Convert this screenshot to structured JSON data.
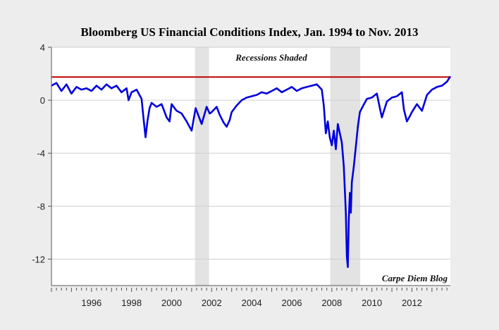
{
  "chart_data": {
    "type": "line",
    "title": "Bloomberg US Financial Conditions Index, Jan. 1994 to Nov. 2013",
    "xlabel": "",
    "ylabel": "",
    "xlim": [
      1994.0,
      2013.92
    ],
    "ylim": [
      -14,
      4
    ],
    "y_ticks": [
      4,
      0,
      -4,
      -8,
      -12
    ],
    "y_tick_labels": [
      "4",
      "0",
      "-4",
      "-8",
      "-12"
    ],
    "x_ticks": [
      1996,
      1998,
      2000,
      2002,
      2004,
      2006,
      2008,
      2010,
      2012
    ],
    "x_tick_labels": [
      "1996",
      "1998",
      "2000",
      "2002",
      "2004",
      "2006",
      "2008",
      "2010",
      "2012"
    ],
    "annotations": [
      "Recessions Shaded",
      "Carpe Diem Blog"
    ],
    "recessions": [
      {
        "start": 2001.17,
        "end": 2001.87
      },
      {
        "start": 2007.92,
        "end": 2009.42
      }
    ],
    "reference_line": {
      "y": 1.75,
      "color": "#c00000"
    },
    "series": [
      {
        "name": "Bloomberg US Financial Conditions Index",
        "color": "#0000dd",
        "x": [
          1994.0,
          1994.25,
          1994.5,
          1994.75,
          1995.0,
          1995.25,
          1995.5,
          1995.75,
          1996.0,
          1996.25,
          1996.5,
          1996.75,
          1997.0,
          1997.25,
          1997.5,
          1997.75,
          1997.85,
          1998.0,
          1998.25,
          1998.5,
          1998.6,
          1998.7,
          1998.8,
          1998.9,
          1999.0,
          1999.25,
          1999.5,
          1999.75,
          1999.9,
          2000.0,
          2000.25,
          2000.5,
          2000.75,
          2001.0,
          2001.2,
          2001.5,
          2001.75,
          2001.9,
          2002.0,
          2002.25,
          2002.4,
          2002.6,
          2002.75,
          2002.9,
          2003.0,
          2003.25,
          2003.5,
          2003.75,
          2004.0,
          2004.25,
          2004.5,
          2004.75,
          2005.0,
          2005.25,
          2005.5,
          2005.75,
          2006.0,
          2006.25,
          2006.5,
          2006.75,
          2007.0,
          2007.25,
          2007.5,
          2007.6,
          2007.7,
          2007.8,
          2007.9,
          2008.0,
          2008.1,
          2008.2,
          2008.3,
          2008.4,
          2008.5,
          2008.6,
          2008.7,
          2008.75,
          2008.8,
          2008.85,
          2008.9,
          2008.95,
          2009.0,
          2009.1,
          2009.2,
          2009.3,
          2009.4,
          2009.5,
          2009.75,
          2010.0,
          2010.25,
          2010.4,
          2010.5,
          2010.75,
          2011.0,
          2011.25,
          2011.5,
          2011.6,
          2011.75,
          2011.9,
          2012.0,
          2012.25,
          2012.5,
          2012.75,
          2013.0,
          2013.25,
          2013.5,
          2013.75,
          2013.92
        ],
        "values": [
          1.1,
          1.3,
          0.7,
          1.2,
          0.5,
          1.0,
          0.8,
          0.9,
          0.7,
          1.1,
          0.8,
          1.2,
          0.9,
          1.1,
          0.6,
          0.9,
          0.0,
          0.6,
          0.8,
          0.1,
          -1.4,
          -2.8,
          -1.5,
          -0.6,
          -0.2,
          -0.5,
          -0.3,
          -1.3,
          -1.6,
          -0.3,
          -0.8,
          -1.0,
          -1.6,
          -2.3,
          -0.6,
          -1.8,
          -0.5,
          -1.0,
          -0.9,
          -0.5,
          -1.1,
          -1.7,
          -2.0,
          -1.5,
          -0.9,
          -0.4,
          0.0,
          0.2,
          0.3,
          0.4,
          0.6,
          0.5,
          0.7,
          0.9,
          0.6,
          0.8,
          1.0,
          0.7,
          0.9,
          1.0,
          1.1,
          1.2,
          0.8,
          -0.4,
          -2.5,
          -1.6,
          -2.8,
          -3.4,
          -2.3,
          -3.7,
          -1.8,
          -2.5,
          -3.2,
          -5.0,
          -8.5,
          -11.8,
          -12.6,
          -9.0,
          -7.0,
          -8.5,
          -6.2,
          -5.0,
          -3.5,
          -2.0,
          -0.9,
          -0.6,
          0.1,
          0.2,
          0.5,
          -0.6,
          -1.3,
          -0.1,
          0.2,
          0.3,
          0.6,
          -0.7,
          -1.6,
          -1.2,
          -0.9,
          -0.3,
          -0.8,
          0.4,
          0.8,
          1.0,
          1.1,
          1.4,
          1.8
        ]
      }
    ]
  }
}
